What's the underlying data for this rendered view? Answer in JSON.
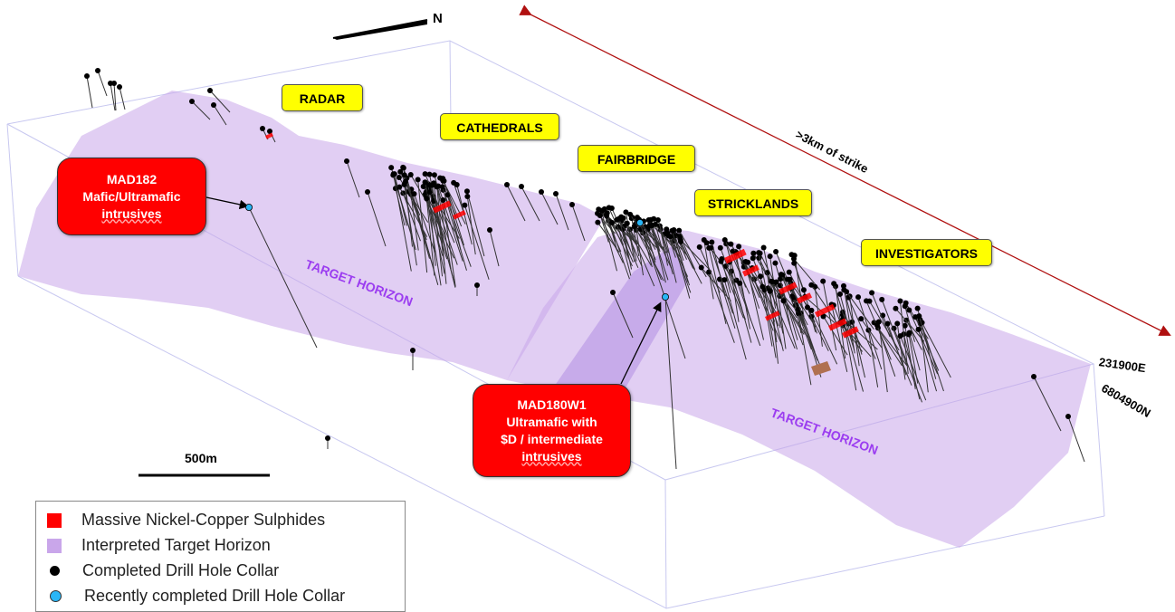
{
  "labels": {
    "north": "N",
    "radar": "RADAR",
    "cathedrals": "CATHEDRALS",
    "fairbridge": "FAIRBRIDGE",
    "stricklands": "STRICKLANDS",
    "investigators": "INVESTIGATORS",
    "strike": ">3km of strike",
    "target_horizon_1": "TARGET HORIZON",
    "target_horizon_2": "TARGET HORIZON",
    "easting": "231900E",
    "northing": "6804900N",
    "scale": "500m"
  },
  "callouts": {
    "mad182": {
      "line1": "MAD182",
      "line2": "Mafic/Ultramafic",
      "line3": "intrusives"
    },
    "mad180w1": {
      "line1": "MAD180W1",
      "line2": "Ultramafic with",
      "line3": "$D / intermediate",
      "line4": "intrusives"
    }
  },
  "legend": [
    {
      "label": "Massive Nickel-Copper Sulphides",
      "symbol": "square",
      "color": "#ff0000"
    },
    {
      "label": "Interpreted Target Horizon",
      "symbol": "square",
      "color": "#c9a6ea"
    },
    {
      "label": "Completed Drill Hole Collar",
      "symbol": "circle",
      "color": "#000000"
    },
    {
      "label": "Recently completed Drill Hole Collar",
      "symbol": "circle",
      "color": "#29b6f6"
    }
  ],
  "colors": {
    "target_horizon": "#c9a6ea",
    "sulphides": "#ff0000",
    "collar": "#000000",
    "recent_collar": "#29b6f6",
    "strike_arrow": "#b01010",
    "label_bg": "#ffff00",
    "callout_bg": "#ff0000",
    "horizon_text": "#9b3df0"
  }
}
